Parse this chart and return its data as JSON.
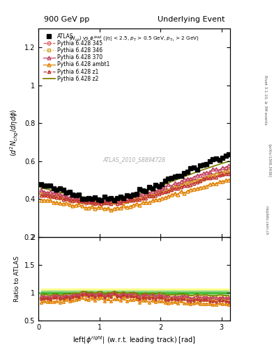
{
  "title_left": "900 GeV pp",
  "title_right": "Underlying Event",
  "watermark": "ATLAS_2010_S8894728",
  "xlim": [
    0,
    3.14159
  ],
  "ylim_main": [
    0.2,
    1.3
  ],
  "ylim_ratio": [
    0.5,
    2.0
  ],
  "yticks_main": [
    0.2,
    0.4,
    0.6,
    0.8,
    1.0,
    1.2
  ],
  "yticks_ratio": [
    0.5,
    1.0,
    1.5,
    2.0
  ],
  "xticks": [
    0,
    1,
    2,
    3
  ],
  "atlas_color": "#000000",
  "py345_color": "#e06060",
  "py346_color": "#d4a020",
  "py370_color": "#c04060",
  "pyambt1_color": "#e08000",
  "pyz1_color": "#c03030",
  "pyz2_color": "#808000",
  "band_outer_color": "#ffff80",
  "band_inner_color": "#80d080",
  "hline_color": "#00aa00",
  "legend_labels": [
    "ATLAS",
    "Pythia 6.428 345",
    "Pythia 6.428 346",
    "Pythia 6.428 370",
    "Pythia 6.428 ambt1",
    "Pythia 6.428 z1",
    "Pythia 6.428 z2"
  ]
}
